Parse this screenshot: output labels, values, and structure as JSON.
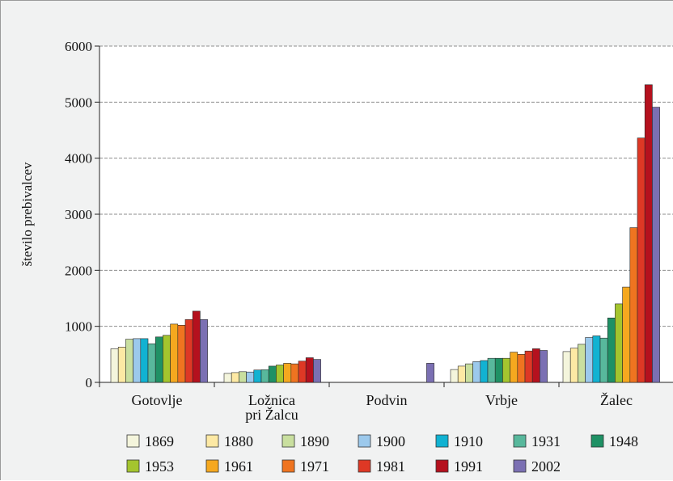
{
  "chart_data": {
    "type": "bar",
    "title": "",
    "xlabel": "",
    "ylabel": "število prebivalcev",
    "ylim": [
      0,
      6000
    ],
    "yticks": [
      "0",
      "1000",
      "2000",
      "3000",
      "4000",
      "5000",
      "6000"
    ],
    "grid": "horizontal dashed",
    "legend_position": "bottom",
    "categories": [
      [
        "Gotovlje"
      ],
      [
        "Ložnica",
        "pri Žalcu"
      ],
      [
        "Podvin"
      ],
      [
        "Vrbje"
      ],
      [
        "Žalec"
      ]
    ],
    "series": [
      {
        "name": "1869",
        "color": "#f4f5dc",
        "values": [
          600,
          160,
          null,
          230,
          550
        ]
      },
      {
        "name": "1880",
        "color": "#fde9a4",
        "values": [
          630,
          175,
          null,
          290,
          610
        ]
      },
      {
        "name": "1890",
        "color": "#c9df9f",
        "values": [
          770,
          190,
          null,
          330,
          680
        ]
      },
      {
        "name": "1900",
        "color": "#9cc9ec",
        "values": [
          780,
          185,
          null,
          370,
          800
        ]
      },
      {
        "name": "1910",
        "color": "#11b2d2",
        "values": [
          780,
          220,
          null,
          390,
          830
        ]
      },
      {
        "name": "1931",
        "color": "#58b89c",
        "values": [
          690,
          225,
          null,
          430,
          790
        ]
      },
      {
        "name": "1948",
        "color": "#1f9165",
        "values": [
          810,
          290,
          null,
          430,
          1150
        ]
      },
      {
        "name": "1953",
        "color": "#a4c52e",
        "values": [
          840,
          310,
          null,
          430,
          1400
        ]
      },
      {
        "name": "1961",
        "color": "#f5a81f",
        "values": [
          1040,
          340,
          null,
          540,
          1700
        ]
      },
      {
        "name": "1971",
        "color": "#ef7420",
        "values": [
          1020,
          330,
          null,
          500,
          2760
        ]
      },
      {
        "name": "1981",
        "color": "#de3825",
        "values": [
          1120,
          380,
          null,
          560,
          4360
        ]
      },
      {
        "name": "1991",
        "color": "#b5111e",
        "values": [
          1270,
          440,
          null,
          600,
          5310
        ]
      },
      {
        "name": "2002",
        "color": "#7b70b3",
        "values": [
          1120,
          410,
          340,
          570,
          4910
        ]
      }
    ]
  }
}
